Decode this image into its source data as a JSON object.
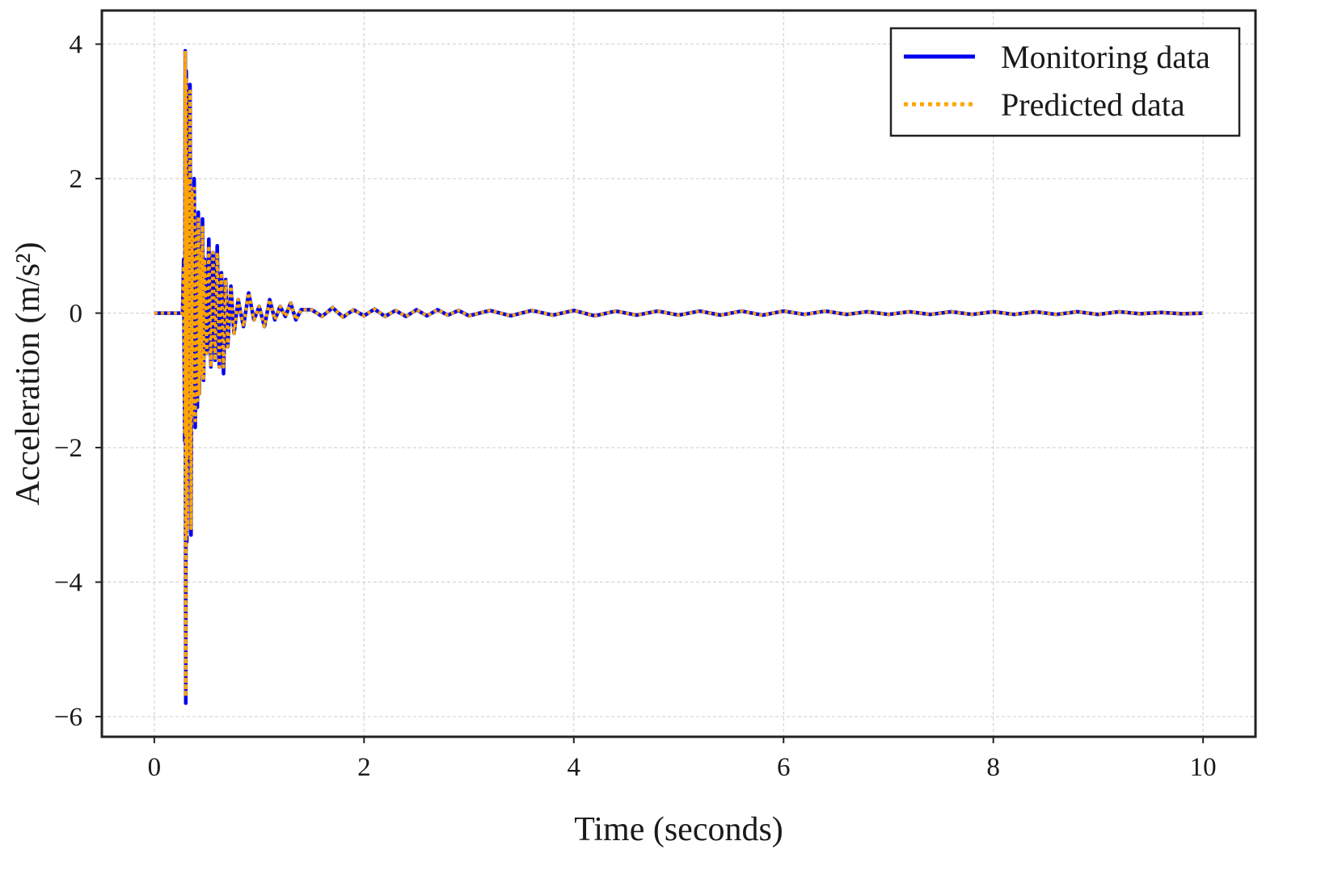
{
  "chart_data": {
    "type": "line",
    "title": "",
    "xlabel": "Time (seconds)",
    "ylabel": "Acceleration (m/s²)",
    "xlim": [
      -0.5,
      10.5
    ],
    "ylim": [
      -6.3,
      4.5
    ],
    "grid": true,
    "legend_position": "top-right",
    "x_ticks": [
      0,
      2,
      4,
      6,
      8,
      10
    ],
    "x_tick_labels": [
      "0",
      "2",
      "4",
      "6",
      "8",
      "10"
    ],
    "y_ticks": [
      4,
      2,
      0,
      -2,
      -4,
      -6
    ],
    "y_tick_labels": [
      "4",
      "2",
      "0",
      "−2",
      "−4",
      "−6"
    ],
    "series": [
      {
        "name": "Monitoring data",
        "color": "#0000ee",
        "style": "solid",
        "x": [
          0,
          0.1,
          0.2,
          0.27,
          0.28,
          0.29,
          0.295,
          0.3,
          0.305,
          0.31,
          0.32,
          0.33,
          0.34,
          0.35,
          0.36,
          0.37,
          0.38,
          0.39,
          0.4,
          0.41,
          0.42,
          0.43,
          0.44,
          0.45,
          0.46,
          0.47,
          0.48,
          0.5,
          0.52,
          0.54,
          0.56,
          0.58,
          0.6,
          0.62,
          0.64,
          0.66,
          0.68,
          0.7,
          0.73,
          0.76,
          0.8,
          0.85,
          0.9,
          0.95,
          1.0,
          1.05,
          1.1,
          1.15,
          1.2,
          1.25,
          1.3,
          1.35,
          1.4,
          1.5,
          1.6,
          1.7,
          1.8,
          1.9,
          2.0,
          2.1,
          2.2,
          2.3,
          2.4,
          2.5,
          2.6,
          2.7,
          2.8,
          2.9,
          3.0,
          3.2,
          3.4,
          3.6,
          3.8,
          4.0,
          4.2,
          4.4,
          4.6,
          4.8,
          5.0,
          5.2,
          5.4,
          5.6,
          5.8,
          6.0,
          6.2,
          6.4,
          6.6,
          6.8,
          7.0,
          7.2,
          7.4,
          7.6,
          7.8,
          8.0,
          8.2,
          8.4,
          8.6,
          8.8,
          9.0,
          9.2,
          9.4,
          9.6,
          9.8,
          10.0
        ],
        "values": [
          0,
          0,
          0,
          0,
          0.8,
          -1.9,
          3.9,
          -5.8,
          3.6,
          -3.4,
          2.0,
          -2.2,
          3.4,
          -3.3,
          1.8,
          -1.5,
          2.0,
          -1.7,
          1.2,
          -1.4,
          1.5,
          -1.2,
          0.9,
          -0.9,
          1.4,
          -1.0,
          0.8,
          -0.6,
          1.1,
          -0.8,
          0.9,
          -0.7,
          1.0,
          -0.8,
          0.6,
          -0.9,
          0.5,
          -0.5,
          0.4,
          -0.3,
          0.2,
          -0.2,
          0.3,
          -0.1,
          0.1,
          -0.2,
          0.2,
          -0.1,
          0.1,
          -0.05,
          0.15,
          -0.1,
          0.05,
          0.05,
          -0.05,
          0.08,
          -0.06,
          0.05,
          -0.04,
          0.06,
          -0.05,
          0.04,
          -0.05,
          0.05,
          -0.04,
          0.05,
          -0.03,
          0.04,
          -0.04,
          0.04,
          -0.04,
          0.04,
          -0.03,
          0.04,
          -0.04,
          0.03,
          -0.03,
          0.03,
          -0.03,
          0.03,
          -0.03,
          0.03,
          -0.03,
          0.03,
          -0.02,
          0.03,
          -0.02,
          0.02,
          -0.02,
          0.02,
          -0.02,
          0.02,
          -0.02,
          0.02,
          -0.02,
          0.02,
          -0.02,
          0.02,
          -0.02,
          0.02,
          -0.01,
          0.01,
          -0.01,
          0
        ]
      },
      {
        "name": "Predicted data",
        "color": "#ffa500",
        "style": "dotted",
        "x": [
          0,
          0.1,
          0.2,
          0.27,
          0.28,
          0.29,
          0.295,
          0.3,
          0.305,
          0.31,
          0.32,
          0.33,
          0.34,
          0.35,
          0.36,
          0.37,
          0.38,
          0.39,
          0.4,
          0.41,
          0.42,
          0.43,
          0.44,
          0.45,
          0.46,
          0.47,
          0.48,
          0.5,
          0.52,
          0.54,
          0.56,
          0.58,
          0.6,
          0.62,
          0.64,
          0.66,
          0.68,
          0.7,
          0.73,
          0.76,
          0.8,
          0.85,
          0.9,
          0.95,
          1.0,
          1.05,
          1.1,
          1.15,
          1.2,
          1.25,
          1.3,
          1.35,
          1.4,
          1.5,
          1.6,
          1.7,
          1.8,
          1.9,
          2.0,
          2.1,
          2.2,
          2.3,
          2.4,
          2.5,
          2.6,
          2.7,
          2.8,
          2.9,
          3.0,
          3.2,
          3.4,
          3.6,
          3.8,
          4.0,
          4.2,
          4.4,
          4.6,
          4.8,
          5.0,
          5.2,
          5.4,
          5.6,
          5.8,
          6.0,
          6.2,
          6.4,
          6.6,
          6.8,
          7.0,
          7.2,
          7.4,
          7.6,
          7.8,
          8.0,
          8.2,
          8.4,
          8.6,
          8.8,
          9.0,
          9.2,
          9.4,
          9.6,
          9.8,
          10.0
        ],
        "values": [
          0,
          0,
          0,
          0,
          0.7,
          -1.8,
          3.9,
          -5.7,
          3.5,
          -3.3,
          2.0,
          -2.1,
          3.3,
          -3.2,
          1.8,
          -1.5,
          1.9,
          -1.6,
          1.2,
          -1.3,
          1.4,
          -1.2,
          0.9,
          -0.9,
          1.3,
          -1.0,
          0.8,
          -0.6,
          1.0,
          -0.8,
          0.9,
          -0.7,
          0.9,
          -0.8,
          0.6,
          -0.8,
          0.5,
          -0.5,
          0.4,
          -0.3,
          0.2,
          -0.2,
          0.3,
          -0.1,
          0.1,
          -0.2,
          0.2,
          -0.1,
          0.1,
          -0.05,
          0.15,
          -0.1,
          0.05,
          0.05,
          -0.05,
          0.08,
          -0.06,
          0.05,
          -0.04,
          0.06,
          -0.05,
          0.04,
          -0.05,
          0.05,
          -0.04,
          0.05,
          -0.03,
          0.04,
          -0.04,
          0.04,
          -0.04,
          0.04,
          -0.03,
          0.04,
          -0.04,
          0.03,
          -0.03,
          0.03,
          -0.03,
          0.03,
          -0.03,
          0.03,
          -0.03,
          0.03,
          -0.02,
          0.03,
          -0.02,
          0.02,
          -0.02,
          0.02,
          -0.02,
          0.02,
          -0.02,
          0.02,
          -0.02,
          0.02,
          -0.02,
          0.02,
          -0.02,
          0.02,
          -0.01,
          0.01,
          -0.01,
          0
        ]
      }
    ]
  }
}
